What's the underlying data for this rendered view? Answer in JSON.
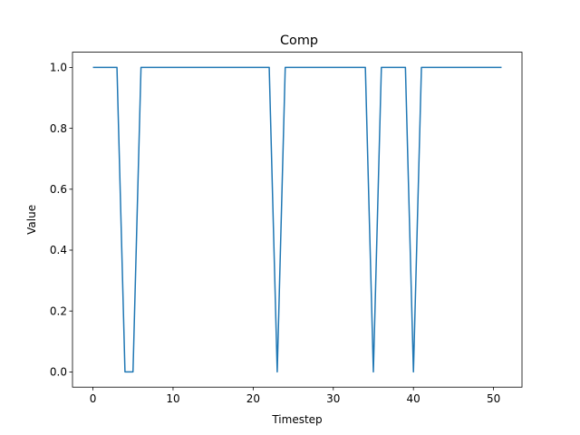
{
  "chart_data": {
    "type": "line",
    "title": "Comp",
    "xlabel": "Timestep",
    "ylabel": "Value",
    "xlim": [
      -2.55,
      53.55
    ],
    "ylim": [
      -0.05,
      1.05
    ],
    "xticks": [
      0,
      10,
      20,
      30,
      40,
      50
    ],
    "yticks": [
      0.0,
      0.2,
      0.4,
      0.6,
      0.8,
      1.0
    ],
    "xtick_labels": [
      "0",
      "10",
      "20",
      "30",
      "40",
      "50"
    ],
    "ytick_labels": [
      "0.0",
      "0.2",
      "0.4",
      "0.6",
      "0.8",
      "1.0"
    ],
    "grid": false,
    "line_color": "#1f77b4",
    "series": [
      {
        "x": [
          0,
          1,
          2,
          3,
          4,
          5,
          6,
          7,
          8,
          9,
          10,
          11,
          12,
          13,
          14,
          15,
          16,
          17,
          18,
          19,
          20,
          21,
          22,
          23,
          24,
          25,
          26,
          27,
          28,
          29,
          30,
          31,
          32,
          33,
          34,
          35,
          36,
          37,
          38,
          39,
          40,
          41,
          42,
          43,
          44,
          45,
          46,
          47,
          48,
          49,
          50,
          51
        ],
        "values": [
          1,
          1,
          1,
          1,
          0,
          0,
          1,
          1,
          1,
          1,
          1,
          1,
          1,
          1,
          1,
          1,
          1,
          1,
          1,
          1,
          1,
          1,
          1,
          0,
          1,
          1,
          1,
          1,
          1,
          1,
          1,
          1,
          1,
          1,
          1,
          0,
          1,
          1,
          1,
          1,
          0,
          1,
          1,
          1,
          1,
          1,
          1,
          1,
          1,
          1,
          1,
          1
        ]
      }
    ]
  }
}
